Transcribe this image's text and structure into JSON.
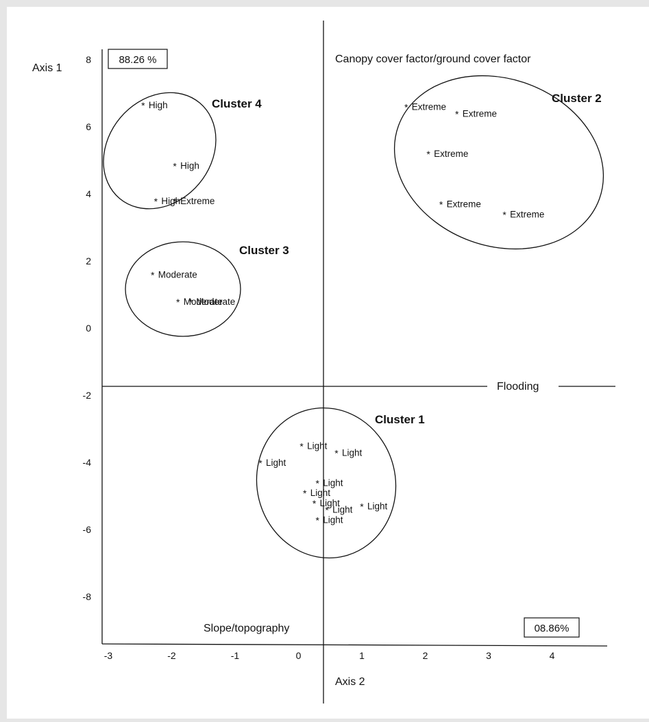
{
  "chart_data": {
    "type": "scatter",
    "xlabel": "Axis 2",
    "ylabel": "Axis 1",
    "x_ticks": [
      "-3",
      "-2",
      "-1",
      "0",
      "1",
      "2",
      "3",
      "4"
    ],
    "y_ticks": [
      "8",
      "6",
      "4",
      "2",
      "0",
      "-2",
      "-4",
      "-6",
      "-8"
    ],
    "xlim": [
      -3.0,
      4.9
    ],
    "ylim": [
      -9.3,
      8.6
    ],
    "axis_percent_y": "88.26 %",
    "axis_percent_x": "08.86%",
    "factor_labels": {
      "top": "Canopy cover factor/ground cover factor",
      "right": "Flooding",
      "bottom": "Slope/topography"
    },
    "clusters": [
      {
        "name": "Cluster 1",
        "points": [
          {
            "label": "Light",
            "x": 0.05,
            "y": -3.5
          },
          {
            "label": "Light",
            "x": 0.6,
            "y": -3.7
          },
          {
            "label": "Light",
            "x": -0.6,
            "y": -4.0
          },
          {
            "label": "Light",
            "x": 0.1,
            "y": -4.9
          },
          {
            "label": "Light",
            "x": 0.3,
            "y": -4.6
          },
          {
            "label": "Light",
            "x": 0.25,
            "y": -5.2
          },
          {
            "label": "Light",
            "x": 0.45,
            "y": -5.4
          },
          {
            "label": "Light",
            "x": 1.0,
            "y": -5.3
          },
          {
            "label": "Light",
            "x": 0.3,
            "y": -5.7
          }
        ]
      },
      {
        "name": "Cluster 2",
        "points": [
          {
            "label": "Extreme",
            "x": 1.7,
            "y": 6.6
          },
          {
            "label": "Extreme",
            "x": 2.5,
            "y": 6.4
          },
          {
            "label": "Extreme",
            "x": 2.05,
            "y": 5.2
          },
          {
            "label": "Extreme",
            "x": 2.25,
            "y": 3.7
          },
          {
            "label": "Extreme",
            "x": 3.25,
            "y": 3.4
          }
        ]
      },
      {
        "name": "Cluster 3",
        "points": [
          {
            "label": "Moderate",
            "x": -2.3,
            "y": 1.6
          },
          {
            "label": "Moderate",
            "x": -1.9,
            "y": 0.8
          },
          {
            "label": "Moderate",
            "x": -1.7,
            "y": 0.8
          }
        ]
      },
      {
        "name": "Cluster 4",
        "points": [
          {
            "label": "High",
            "x": -2.45,
            "y": 6.65
          },
          {
            "label": "High",
            "x": -1.95,
            "y": 4.85
          },
          {
            "label": "High",
            "x": -2.25,
            "y": 3.8
          },
          {
            "label": "Extreme",
            "x": -1.95,
            "y": 3.8
          }
        ]
      }
    ]
  }
}
